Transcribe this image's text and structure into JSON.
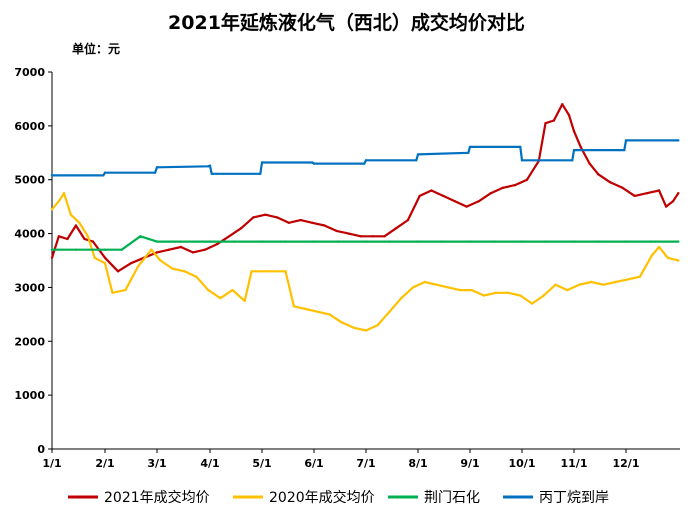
{
  "chart_data": {
    "type": "line",
    "title": "2021年延炼液化气（西北）成交均价对比",
    "unit_label": "单位：元",
    "xlabel": "",
    "ylabel": "",
    "x_ticks": [
      "1/1",
      "2/1",
      "3/1",
      "4/1",
      "5/1",
      "6/1",
      "7/1",
      "8/1",
      "9/1",
      "10/1",
      "11/1",
      "12/1"
    ],
    "y_ticks": [
      0,
      1000,
      2000,
      3000,
      4000,
      5000,
      6000,
      7000
    ],
    "ylim": [
      0,
      7000
    ],
    "grid": false,
    "legend_position": "bottom",
    "series": [
      {
        "name": "2021年成交均价",
        "color": "#c00000",
        "points": [
          [
            "1/1",
            3550
          ],
          [
            "1/5",
            3950
          ],
          [
            "1/10",
            3900
          ],
          [
            "1/15",
            4150
          ],
          [
            "1/20",
            3900
          ],
          [
            "1/25",
            3850
          ],
          [
            "2/1",
            3550
          ],
          [
            "2/8",
            3300
          ],
          [
            "2/15",
            3450
          ],
          [
            "2/22",
            3550
          ],
          [
            "3/1",
            3650
          ],
          [
            "3/8",
            3700
          ],
          [
            "3/15",
            3750
          ],
          [
            "3/22",
            3650
          ],
          [
            "3/29",
            3700
          ],
          [
            "4/5",
            3800
          ],
          [
            "4/12",
            3950
          ],
          [
            "4/19",
            4100
          ],
          [
            "4/26",
            4300
          ],
          [
            "5/3",
            4350
          ],
          [
            "5/10",
            4300
          ],
          [
            "5/17",
            4200
          ],
          [
            "5/24",
            4250
          ],
          [
            "5/31",
            4200
          ],
          [
            "6/7",
            4150
          ],
          [
            "6/14",
            4050
          ],
          [
            "6/21",
            4000
          ],
          [
            "6/28",
            3950
          ],
          [
            "7/5",
            3950
          ],
          [
            "7/12",
            3950
          ],
          [
            "7/19",
            4100
          ],
          [
            "7/26",
            4250
          ],
          [
            "8/2",
            4700
          ],
          [
            "8/9",
            4800
          ],
          [
            "8/16",
            4700
          ],
          [
            "8/23",
            4600
          ],
          [
            "8/30",
            4500
          ],
          [
            "9/6",
            4600
          ],
          [
            "9/13",
            4750
          ],
          [
            "9/20",
            4850
          ],
          [
            "9/27",
            4900
          ],
          [
            "10/4",
            5000
          ],
          [
            "10/11",
            5350
          ],
          [
            "10/15",
            6050
          ],
          [
            "10/20",
            6100
          ],
          [
            "10/25",
            6400
          ],
          [
            "10/29",
            6200
          ],
          [
            "11/1",
            5900
          ],
          [
            "11/5",
            5600
          ],
          [
            "11/10",
            5300
          ],
          [
            "11/15",
            5100
          ],
          [
            "11/22",
            4950
          ],
          [
            "11/29",
            4850
          ],
          [
            "12/6",
            4700
          ],
          [
            "12/13",
            4750
          ],
          [
            "12/20",
            4800
          ],
          [
            "12/24",
            4500
          ],
          [
            "12/28",
            4600
          ],
          [
            "12/31",
            4750
          ]
        ]
      },
      {
        "name": "2020年成交均价",
        "color": "#ffc000",
        "points": [
          [
            "1/1",
            4450
          ],
          [
            "1/5",
            4600
          ],
          [
            "1/8",
            4750
          ],
          [
            "1/12",
            4350
          ],
          [
            "1/17",
            4200
          ],
          [
            "1/22",
            3950
          ],
          [
            "1/26",
            3550
          ],
          [
            "2/1",
            3450
          ],
          [
            "2/5",
            2900
          ],
          [
            "2/12",
            2950
          ],
          [
            "2/19",
            3400
          ],
          [
            "2/26",
            3700
          ],
          [
            "3/3",
            3500
          ],
          [
            "3/10",
            3350
          ],
          [
            "3/17",
            3300
          ],
          [
            "3/24",
            3200
          ],
          [
            "3/31",
            2950
          ],
          [
            "4/7",
            2800
          ],
          [
            "4/14",
            2950
          ],
          [
            "4/21",
            2750
          ],
          [
            "4/25",
            3300
          ],
          [
            "5/5",
            3300
          ],
          [
            "5/15",
            3300
          ],
          [
            "5/20",
            2650
          ],
          [
            "5/27",
            2600
          ],
          [
            "6/3",
            2550
          ],
          [
            "6/10",
            2500
          ],
          [
            "6/17",
            2350
          ],
          [
            "6/24",
            2250
          ],
          [
            "7/1",
            2200
          ],
          [
            "7/8",
            2300
          ],
          [
            "7/15",
            2550
          ],
          [
            "7/22",
            2800
          ],
          [
            "7/29",
            3000
          ],
          [
            "8/5",
            3100
          ],
          [
            "8/12",
            3050
          ],
          [
            "8/19",
            3000
          ],
          [
            "8/26",
            2950
          ],
          [
            "9/2",
            2950
          ],
          [
            "9/9",
            2850
          ],
          [
            "9/16",
            2900
          ],
          [
            "9/23",
            2900
          ],
          [
            "9/30",
            2850
          ],
          [
            "10/7",
            2700
          ],
          [
            "10/14",
            2850
          ],
          [
            "10/21",
            3050
          ],
          [
            "10/28",
            2950
          ],
          [
            "11/4",
            3050
          ],
          [
            "11/11",
            3100
          ],
          [
            "11/18",
            3050
          ],
          [
            "11/25",
            3100
          ],
          [
            "12/2",
            3150
          ],
          [
            "12/9",
            3200
          ],
          [
            "12/16",
            3600
          ],
          [
            "12/20",
            3750
          ],
          [
            "12/25",
            3550
          ],
          [
            "12/31",
            3500
          ]
        ]
      },
      {
        "name": "荆门石化",
        "color": "#00b050",
        "points": [
          [
            "1/1",
            3700
          ],
          [
            "1/15",
            3700
          ],
          [
            "2/1",
            3700
          ],
          [
            "2/10",
            3700
          ],
          [
            "2/20",
            3950
          ],
          [
            "3/1",
            3850
          ],
          [
            "3/15",
            3850
          ],
          [
            "4/1",
            3850
          ],
          [
            "4/15",
            3850
          ],
          [
            "5/1",
            3850
          ],
          [
            "5/15",
            3850
          ],
          [
            "6/1",
            3850
          ],
          [
            "6/15",
            3850
          ],
          [
            "7/1",
            3850
          ],
          [
            "7/15",
            3850
          ],
          [
            "8/1",
            3850
          ],
          [
            "8/15",
            3850
          ],
          [
            "9/1",
            3850
          ],
          [
            "9/15",
            3850
          ],
          [
            "10/1",
            3850
          ],
          [
            "10/15",
            3850
          ],
          [
            "11/1",
            3850
          ],
          [
            "11/15",
            3850
          ],
          [
            "12/1",
            3850
          ],
          [
            "12/15",
            3850
          ],
          [
            "12/31",
            3850
          ]
        ]
      },
      {
        "name": "丙丁烷到岸",
        "color": "#0070c0",
        "points": [
          [
            "1/1",
            5080
          ],
          [
            "1/31",
            5080
          ],
          [
            "2/1",
            5130
          ],
          [
            "2/28",
            5130
          ],
          [
            "3/1",
            5230
          ],
          [
            "3/31",
            5250
          ],
          [
            "4/1",
            5260
          ],
          [
            "4/2",
            5110
          ],
          [
            "4/30",
            5110
          ],
          [
            "5/1",
            5320
          ],
          [
            "5/31",
            5320
          ],
          [
            "6/1",
            5300
          ],
          [
            "6/30",
            5300
          ],
          [
            "7/1",
            5360
          ],
          [
            "7/31",
            5360
          ],
          [
            "8/1",
            5470
          ],
          [
            "8/31",
            5500
          ],
          [
            "9/1",
            5610
          ],
          [
            "9/30",
            5610
          ],
          [
            "10/1",
            5360
          ],
          [
            "10/31",
            5360
          ],
          [
            "11/1",
            5550
          ],
          [
            "11/30",
            5550
          ],
          [
            "12/1",
            5730
          ],
          [
            "12/31",
            5730
          ]
        ]
      }
    ]
  }
}
